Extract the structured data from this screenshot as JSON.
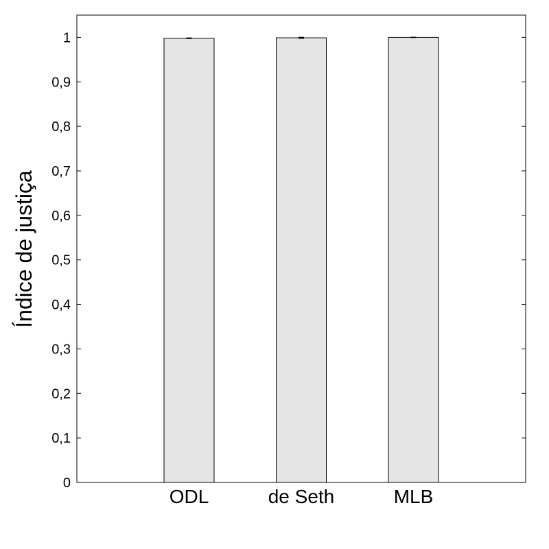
{
  "chart_data": {
    "type": "bar",
    "categories": [
      "ODL",
      "de Seth",
      "MLB"
    ],
    "values": [
      0.998,
      0.999,
      1.0
    ],
    "errors": [
      0.0005,
      0.001,
      0.0
    ],
    "title": "",
    "xlabel": "",
    "ylabel": "Índice de justiça",
    "ylim": [
      0,
      1.05
    ],
    "yticks": [
      0,
      0.1,
      0.2,
      0.3,
      0.4,
      0.5,
      0.6,
      0.7,
      0.8,
      0.9,
      1
    ],
    "ytick_labels": [
      "0",
      "0,1",
      "0,2",
      "0,3",
      "0,4",
      "0,5",
      "0,6",
      "0,7",
      "0,8",
      "0,9",
      "1"
    ],
    "grid": false,
    "bar_color": "#e5e5e5",
    "edge_color": "#000000"
  }
}
